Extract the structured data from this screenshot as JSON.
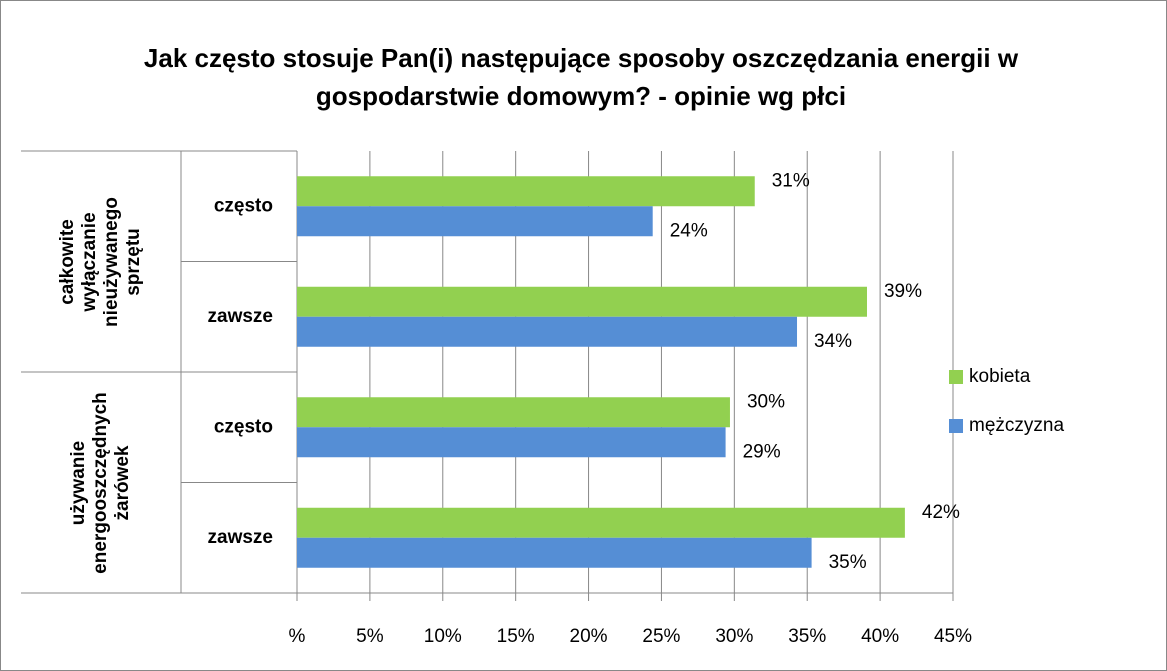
{
  "chart_data": {
    "type": "bar",
    "orientation": "horizontal",
    "title": "Jak często stosuje Pan(i) następujące sposoby oszczędzania energii w gospodarstwie domowym? - opinie wg płci",
    "groups": [
      "całkowite wyłączanie nieużywanego sprzętu",
      "używanie energooszczędnych żarówek"
    ],
    "categories": [
      "często",
      "zawsze",
      "często",
      "zawsze"
    ],
    "series": [
      {
        "name": "kobieta",
        "color": "#92d050",
        "values": [
          31.4,
          39.1,
          29.7,
          41.7
        ],
        "value_labels": [
          "31%",
          "39%",
          "30%",
          "42%"
        ]
      },
      {
        "name": "mężczyzna",
        "color": "#558ed5",
        "values": [
          24.4,
          34.3,
          29.4,
          35.3
        ],
        "value_labels": [
          "24%",
          "34%",
          "29%",
          "35%"
        ]
      }
    ],
    "xlim": [
      0,
      45
    ],
    "xticks": [
      {
        "value": 0,
        "label": "%"
      },
      {
        "value": 5,
        "label": "5%"
      },
      {
        "value": 10,
        "label": "10%"
      },
      {
        "value": 15,
        "label": "15%"
      },
      {
        "value": 20,
        "label": "20%"
      },
      {
        "value": 25,
        "label": "25%"
      },
      {
        "value": 30,
        "label": "30%"
      },
      {
        "value": 35,
        "label": "35%"
      },
      {
        "value": 40,
        "label": "40%"
      },
      {
        "value": 45,
        "label": "45%"
      }
    ],
    "grid": true,
    "legend": "right"
  }
}
